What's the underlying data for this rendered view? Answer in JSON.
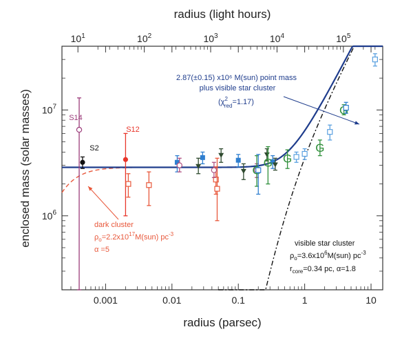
{
  "colors": {
    "frame": "#333333",
    "fit_curve": "#1e3c8c",
    "dark_cluster": "#e8573a",
    "visible_cluster": "#111111",
    "s14": "#9b3b7a",
    "s2": "#111111",
    "s12": "#e8352a",
    "square": "#2f7fd0",
    "open_square": "#e8573a",
    "triangle": "#2f4a2f",
    "g_marker": "#2f8f3a",
    "light_blue": "#5aa0e0",
    "pink": "#b05080"
  },
  "chart_data": {
    "type": "scatter",
    "xlabel": "radius (parsec)",
    "ylabel": "enclosed mass (solar masses)",
    "x2label": "radius (light hours)",
    "xscale": "log",
    "yscale": "log",
    "xlim": [
      0.00022,
      15
    ],
    "ylim": [
      200000,
      40000000
    ],
    "x_ticks": [
      {
        "value": 0.001,
        "label": "0.001"
      },
      {
        "value": 0.01,
        "label": "0.01"
      },
      {
        "value": 0.1,
        "label": "0.1"
      },
      {
        "value": 1,
        "label": "1"
      },
      {
        "value": 10,
        "label": "10"
      }
    ],
    "x2_ticks": [
      {
        "value": 0.000383,
        "base": "10",
        "exp": "1"
      },
      {
        "value": 0.00383,
        "base": "10",
        "exp": "2"
      },
      {
        "value": 0.0383,
        "base": "10",
        "exp": "3"
      },
      {
        "value": 0.383,
        "base": "10",
        "exp": "4"
      },
      {
        "value": 3.83,
        "base": "10",
        "exp": "5"
      }
    ],
    "y_ticks": [
      {
        "value": 1000000,
        "base": "10",
        "exp": "6"
      },
      {
        "value": 10000000,
        "base": "10",
        "exp": "7"
      }
    ],
    "series": [
      {
        "marker": "open-circle",
        "color": "s14",
        "points": [
          {
            "x": 0.0004,
            "y": 6500000,
            "ylo": 200000,
            "yhi": 13000000
          }
        ]
      },
      {
        "marker": "filled-circle",
        "color": "s2",
        "points": [
          {
            "x": 0.00045,
            "y": 3200000,
            "ylo": 2800000,
            "yhi": 3600000
          }
        ]
      },
      {
        "marker": "filled-circle",
        "color": "s12",
        "points": [
          {
            "x": 0.002,
            "y": 3400000,
            "ylo": 1000000,
            "yhi": 6000000
          }
        ]
      },
      {
        "marker": "filled-square",
        "color": "square",
        "points": [
          {
            "x": 0.012,
            "y": 3200000,
            "ylo": 2600000,
            "yhi": 3700000
          },
          {
            "x": 0.029,
            "y": 3550000,
            "ylo": 3100000,
            "yhi": 4000000
          },
          {
            "x": 0.1,
            "y": 3350000,
            "ylo": 2900000,
            "yhi": 3800000
          },
          {
            "x": 0.33,
            "y": 3250000,
            "ylo": 2800000,
            "yhi": 3700000
          }
        ]
      },
      {
        "marker": "open-square",
        "color": "open_square",
        "points": [
          {
            "x": 0.0022,
            "y": 2000000,
            "ylo": 1500000,
            "yhi": 2500000
          },
          {
            "x": 0.0045,
            "y": 1950000,
            "ylo": 1250000,
            "yhi": 2600000
          },
          {
            "x": 0.046,
            "y": 2200000,
            "ylo": 1600000,
            "yhi": 2900000
          },
          {
            "x": 0.048,
            "y": 1800000,
            "ylo": 900000,
            "yhi": 3500000
          }
        ]
      },
      {
        "marker": "open-circle",
        "color": "pink",
        "points": [
          {
            "x": 0.013,
            "y": 3000000,
            "ylo": 2600000,
            "yhi": 3500000
          },
          {
            "x": 0.043,
            "y": 2700000,
            "ylo": 2300000,
            "yhi": 3200000
          },
          {
            "x": 0.19,
            "y": 2700000,
            "ylo": 2300000,
            "yhi": 3100000
          }
        ]
      },
      {
        "marker": "filled-triangle-down",
        "color": "triangle",
        "points": [
          {
            "x": 0.025,
            "y": 2950000,
            "ylo": 2500000,
            "yhi": 3500000
          },
          {
            "x": 0.055,
            "y": 3750000,
            "ylo": 3200000,
            "yhi": 4300000
          },
          {
            "x": 0.12,
            "y": 2650000,
            "ylo": 2200000,
            "yhi": 3100000
          },
          {
            "x": 0.27,
            "y": 3800000,
            "ylo": 3300000,
            "yhi": 4300000
          },
          {
            "x": 0.36,
            "y": 3050000,
            "ylo": 2700000,
            "yhi": 3500000
          }
        ]
      },
      {
        "marker": "open-square",
        "color": "light_blue",
        "points": [
          {
            "x": 0.75,
            "y": 3600000,
            "ylo": 3200000,
            "yhi": 4000000
          },
          {
            "x": 1.0,
            "y": 3850000,
            "ylo": 3400000,
            "yhi": 4300000
          },
          {
            "x": 2.4,
            "y": 6200000,
            "ylo": 5200000,
            "yhi": 7200000
          },
          {
            "x": 11.5,
            "y": 30000000,
            "ylo": 26000000,
            "yhi": 34000000
          }
        ]
      },
      {
        "marker": "G",
        "color": "g_marker",
        "points": [
          {
            "x": 0.19,
            "y": 2700000,
            "ylo": 1900000,
            "yhi": 3700000
          },
          {
            "x": 0.28,
            "y": 3200000,
            "ylo": 2000000,
            "yhi": 4500000
          },
          {
            "x": 0.55,
            "y": 3500000,
            "ylo": 2800000,
            "yhi": 4200000
          },
          {
            "x": 1.7,
            "y": 4400000,
            "ylo": 3700000,
            "yhi": 5200000
          },
          {
            "x": 3.9,
            "y": 10000000,
            "ylo": 9000000,
            "yhi": 11200000
          }
        ]
      },
      {
        "marker": "open-square",
        "color": "square",
        "points": [
          {
            "x": 0.2,
            "y": 2700000,
            "ylo": 1600000,
            "yhi": 3800000
          },
          {
            "x": 4.2,
            "y": 10500000,
            "ylo": 9300000,
            "yhi": 11800000
          }
        ]
      }
    ],
    "curves": {
      "point_mass_plus_cluster": {
        "color": "fit_curve",
        "style": "solid",
        "m_bh": 2870000,
        "rho": 3600000,
        "r_core": 0.34,
        "alpha": 1.8
      },
      "dark_cluster": {
        "color": "dark_cluster",
        "style": "dashed",
        "m_total": 2870000,
        "rho": 2.2e+17,
        "alpha": 5
      },
      "visible_cluster": {
        "color": "visible_cluster",
        "style": "dash-dot",
        "rho": 3600000,
        "r_core": 0.34,
        "alpha": 1.8
      }
    },
    "annotations": {
      "s14": "S14",
      "s2": "S2",
      "s12": "S12",
      "fit_line1": "2.87(±0.15) x10⁶ M(sun) point mass",
      "fit_line2": "plus visible star cluster",
      "fit_line3a": "(χ",
      "fit_line3b": "2",
      "fit_line3c": "red",
      "fit_line3d": "=1.17)",
      "dark_line1": "dark cluster",
      "dark_line2a": "ρ",
      "dark_line2b": "o",
      "dark_line2c": "=2.2x10",
      "dark_line2d": "17",
      "dark_line2e": "M(sun) pc",
      "dark_line2f": "-3",
      "dark_line3": "α =5",
      "vis_line1": "visible star cluster",
      "vis_line2a": "ρ",
      "vis_line2b": "o",
      "vis_line2c": "=3.6x10",
      "vis_line2d": "6",
      "vis_line2e": "M(sun) pc",
      "vis_line2f": "-3",
      "vis_line3a": "r",
      "vis_line3b": "core",
      "vis_line3c": "=0.34 pc, α=1.8"
    }
  }
}
